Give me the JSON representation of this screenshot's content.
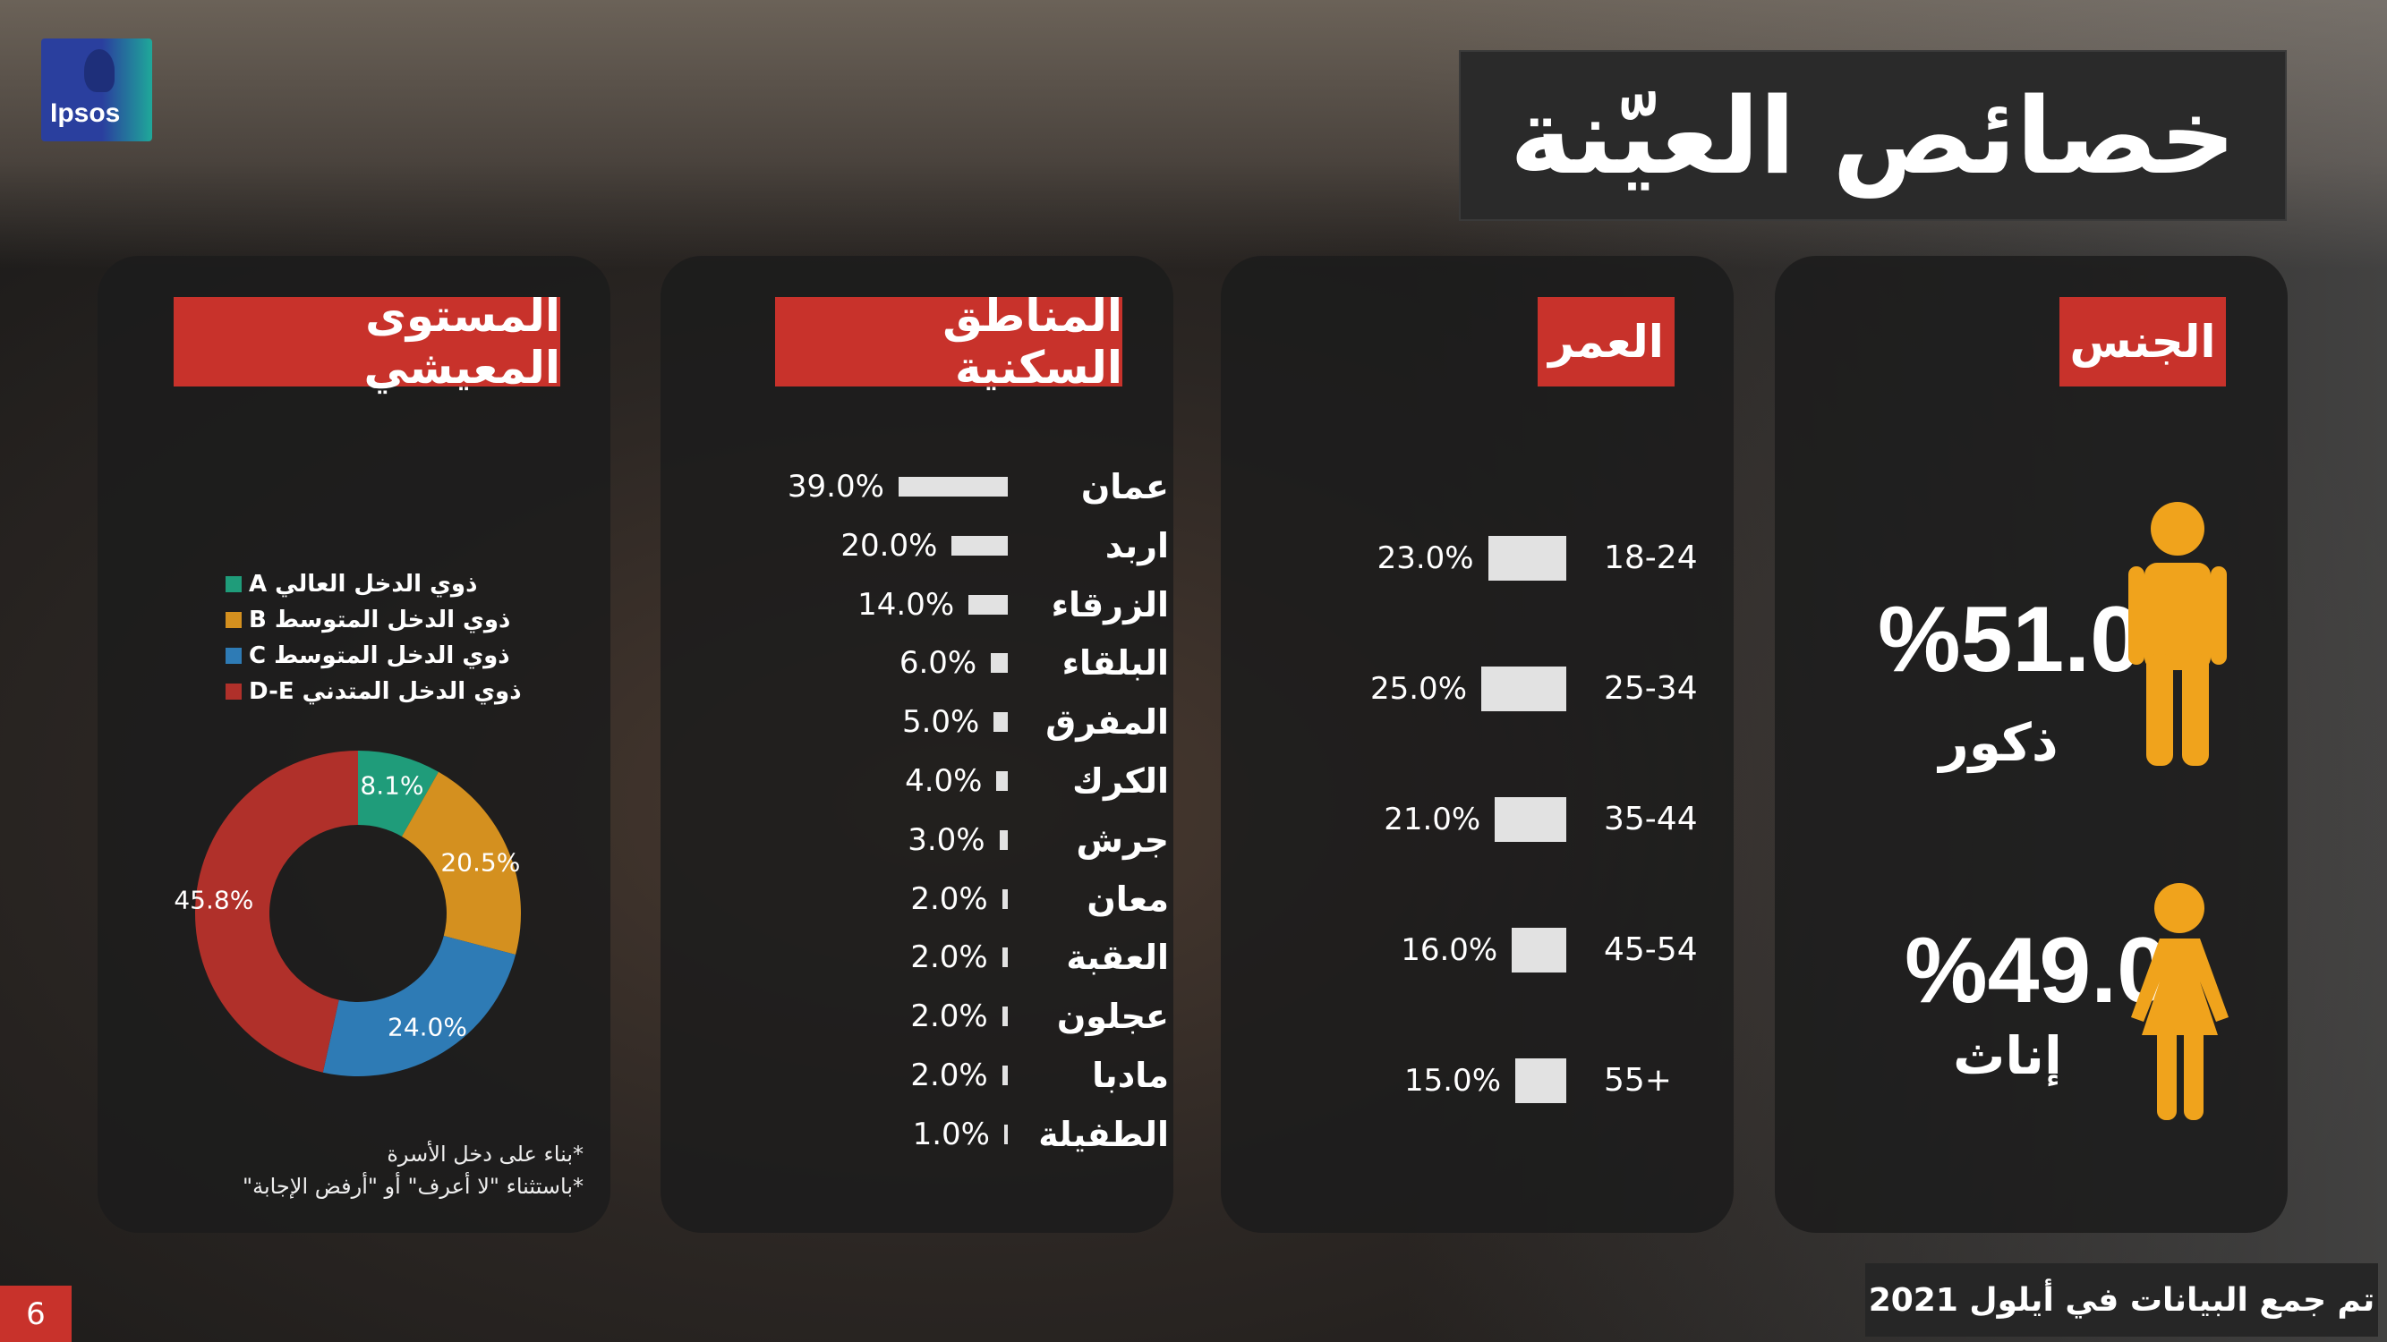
{
  "brand": {
    "logo_text": "Ipsos"
  },
  "title": "خصائص العيّنة",
  "page_number": "6",
  "footer": "تم جمع البيانات في أيلول 2021",
  "colors": {
    "header_red": "#c8322b",
    "person_orange": "#f0a31c",
    "bar": "#e2e2e2"
  },
  "gender": {
    "header": "الجنس",
    "male": {
      "value": "%51.0",
      "label": "ذكور",
      "icon": "male-person-icon"
    },
    "female": {
      "value": "%49.0",
      "label": "إناث",
      "icon": "female-person-icon"
    }
  },
  "age": {
    "header": "العمر",
    "rows": [
      {
        "label": "18-24",
        "value": "23.0%",
        "pct": 23
      },
      {
        "label": "25-34",
        "value": "25.0%",
        "pct": 25
      },
      {
        "label": "35-44",
        "value": "21.0%",
        "pct": 21
      },
      {
        "label": "45-54",
        "value": "16.0%",
        "pct": 16
      },
      {
        "label": "55+",
        "value": "15.0%",
        "pct": 15
      }
    ]
  },
  "regions": {
    "header": "المناطق السكنية",
    "rows": [
      {
        "label": "عمان",
        "value": "39.0%",
        "pct": 39
      },
      {
        "label": "اربد",
        "value": "20.0%",
        "pct": 20
      },
      {
        "label": "الزرقاء",
        "value": "14.0%",
        "pct": 14
      },
      {
        "label": "البلقاء",
        "value": "6.0%",
        "pct": 6
      },
      {
        "label": "المفرق",
        "value": "5.0%",
        "pct": 5
      },
      {
        "label": "الكرك",
        "value": "4.0%",
        "pct": 4
      },
      {
        "label": "جرش",
        "value": "3.0%",
        "pct": 3
      },
      {
        "label": "معان",
        "value": "2.0%",
        "pct": 2
      },
      {
        "label": "العقبة",
        "value": "2.0%",
        "pct": 2
      },
      {
        "label": "عجلون",
        "value": "2.0%",
        "pct": 2
      },
      {
        "label": "مادبا",
        "value": "2.0%",
        "pct": 2
      },
      {
        "label": "الطفيلة",
        "value": "1.0%",
        "pct": 1
      }
    ]
  },
  "living": {
    "header": "المستوى المعيشي",
    "legend": [
      {
        "label": "ذوي الدخل العالي A",
        "color": "#1f9c7a"
      },
      {
        "label": "ذوي الدخل المتوسط B",
        "color": "#d4901f"
      },
      {
        "label": "ذوي الدخل المتوسط C",
        "color": "#2e7bb5"
      },
      {
        "label": "ذوي الدخل المتدني D-E",
        "color": "#b0302a"
      }
    ],
    "slices": [
      {
        "name": "A",
        "value": 8.1,
        "label": "8.1%",
        "color": "#1f9c7a"
      },
      {
        "name": "B",
        "value": 20.5,
        "label": "20.5%",
        "color": "#d4901f"
      },
      {
        "name": "C",
        "value": 24.0,
        "label": "24.0%",
        "color": "#2e7bb5"
      },
      {
        "name": "D-E",
        "value": 45.8,
        "label": "45.8%",
        "color": "#b0302a"
      }
    ],
    "notes": [
      "*بناء على دخل الأسرة",
      "*باستثناء \"لا أعرف\" أو \"أرفض الإجابة\""
    ]
  }
}
